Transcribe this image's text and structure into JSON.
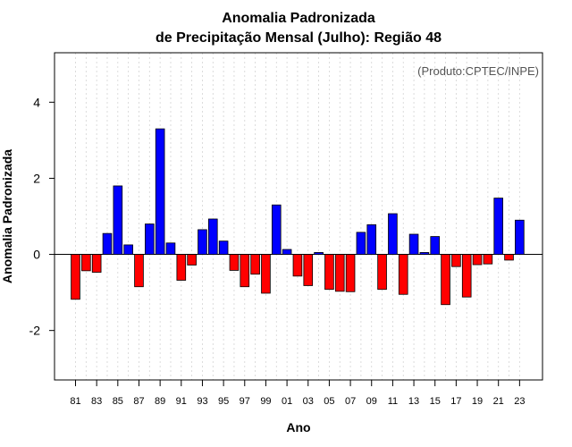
{
  "chart_data": {
    "type": "bar",
    "title_line1": "Anomalia Padronizada",
    "title_line2": "de Precipitação Mensal (Julho): Região 48",
    "xlabel": "Ano",
    "ylabel": "Anomalia Padronizada",
    "credit": "(Produto:CPTEC/INPE)",
    "ylim": [
      -3.3,
      5.3
    ],
    "yticks": [
      -2,
      0,
      2,
      4
    ],
    "ytick_labels": [
      "-2",
      "0",
      "2",
      "4"
    ],
    "years": [
      "81",
      "82",
      "83",
      "84",
      "85",
      "86",
      "87",
      "88",
      "89",
      "90",
      "91",
      "92",
      "93",
      "94",
      "95",
      "96",
      "97",
      "98",
      "99",
      "00",
      "01",
      "02",
      "03",
      "04",
      "05",
      "06",
      "07",
      "08",
      "09",
      "10",
      "11",
      "12",
      "13",
      "14",
      "15",
      "16",
      "17",
      "18",
      "19",
      "20",
      "21",
      "22",
      "23"
    ],
    "xtick_labels": [
      "81",
      "83",
      "85",
      "87",
      "89",
      "91",
      "93",
      "95",
      "97",
      "99",
      "01",
      "03",
      "05",
      "07",
      "09",
      "11",
      "13",
      "15",
      "17",
      "19",
      "21",
      "23"
    ],
    "values": [
      -1.18,
      -0.43,
      -0.47,
      0.55,
      1.8,
      0.25,
      -0.85,
      0.8,
      3.3,
      0.3,
      -0.68,
      -0.28,
      0.65,
      0.93,
      0.35,
      -0.42,
      -0.85,
      -0.52,
      -1.02,
      1.3,
      0.13,
      -0.57,
      -0.82,
      0.05,
      -0.92,
      -0.97,
      -0.98,
      0.58,
      0.78,
      -0.92,
      1.07,
      -1.05,
      0.53,
      0.05,
      0.47,
      -1.32,
      -0.32,
      -1.12,
      -0.27,
      -0.25,
      1.48,
      -0.15,
      0.9
    ],
    "positive_color": "#0000ff",
    "negative_color": "#ff0000",
    "grid": true
  }
}
